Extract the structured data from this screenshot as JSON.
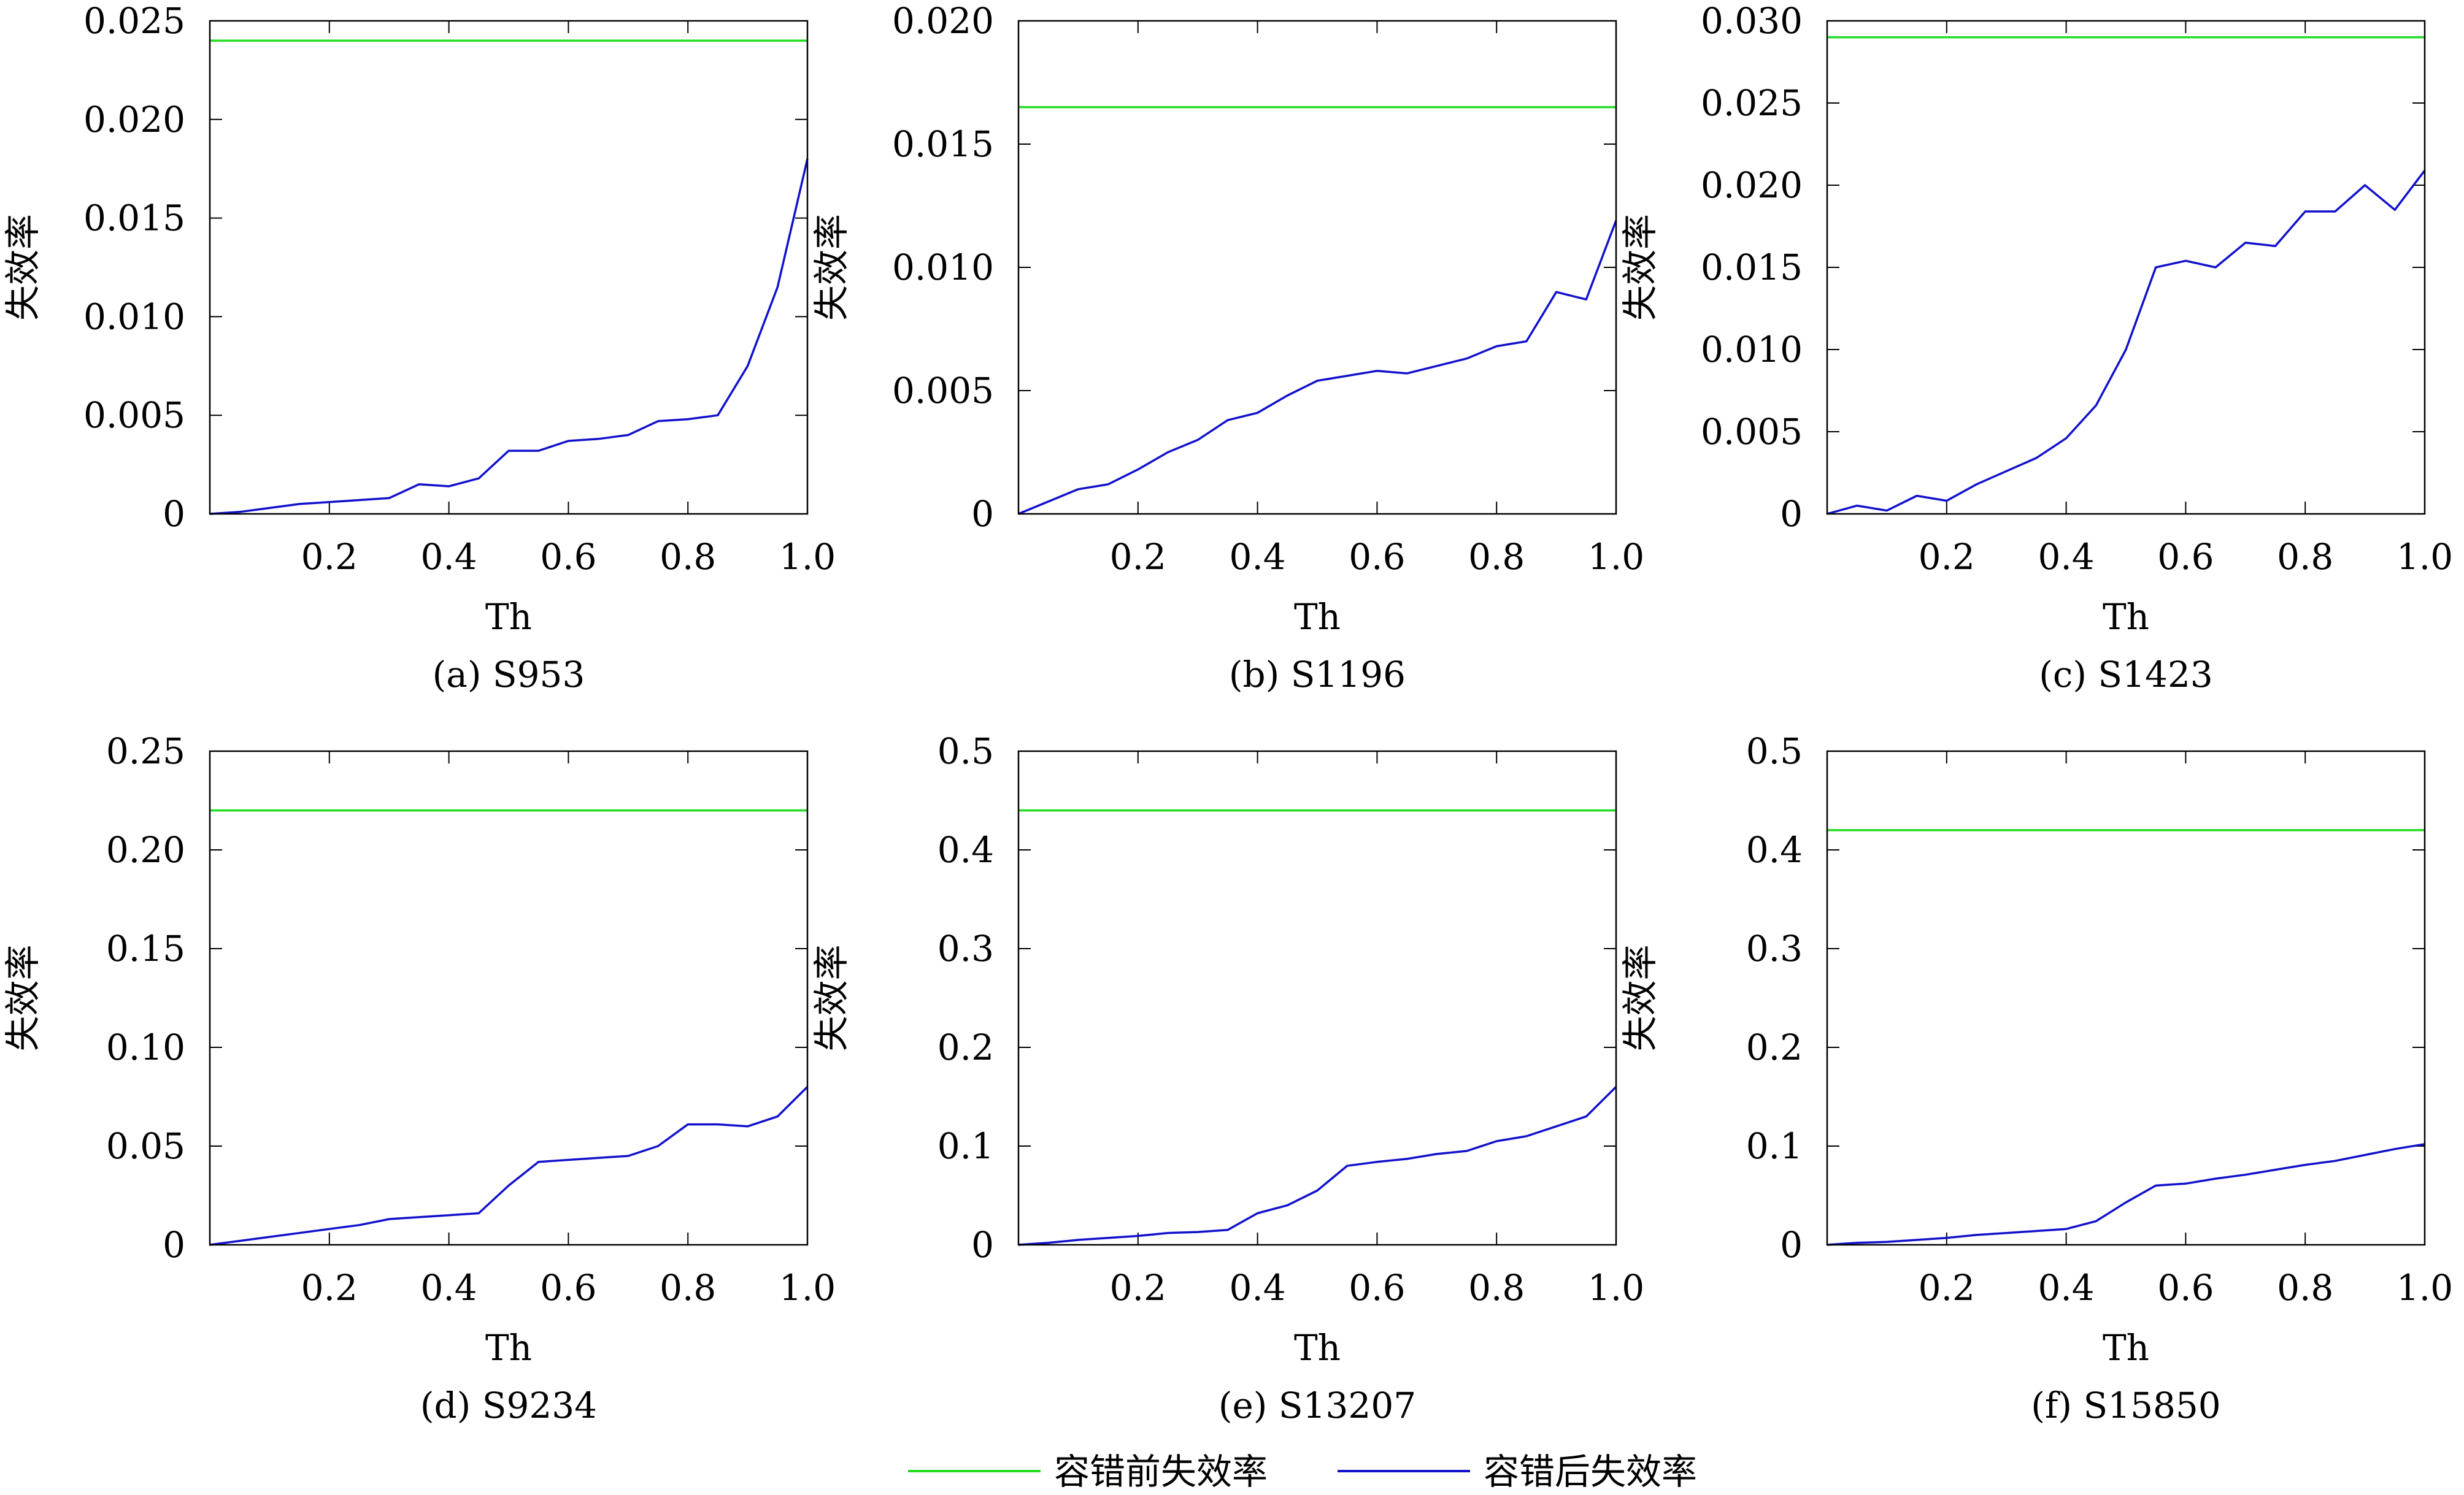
{
  "legend": {
    "items": [
      {
        "label": "容错前失效率",
        "color": "#22dd22"
      },
      {
        "label": "容错后失效率",
        "color": "#1111cc"
      }
    ]
  },
  "chart_data": [
    {
      "type": "line",
      "caption": "(a) S953",
      "xlabel": "Th",
      "ylabel": "失效率",
      "xlim": [
        0,
        1.0
      ],
      "ylim": [
        0,
        0.025
      ],
      "xticks": [
        "0.2",
        "0.4",
        "0.6",
        "0.8",
        "1.0"
      ],
      "yticks": [
        "0",
        "0.005",
        "0.010",
        "0.015",
        "0.020",
        "0.025"
      ],
      "x": [
        0,
        0.05,
        0.1,
        0.15,
        0.2,
        0.25,
        0.3,
        0.35,
        0.4,
        0.45,
        0.5,
        0.55,
        0.6,
        0.65,
        0.7,
        0.75,
        0.8,
        0.85,
        0.9,
        0.95,
        1.0
      ],
      "series": [
        {
          "name": "容错前失效率",
          "values": [
            0.024,
            0.024,
            0.024,
            0.024,
            0.024,
            0.024,
            0.024,
            0.024,
            0.024,
            0.024,
            0.024,
            0.024,
            0.024,
            0.024,
            0.024,
            0.024,
            0.024,
            0.024,
            0.024,
            0.024,
            0.024
          ]
        },
        {
          "name": "容错后失效率",
          "values": [
            0,
            0.0001,
            0.0003,
            0.0005,
            0.0006,
            0.0007,
            0.0008,
            0.0015,
            0.0014,
            0.0018,
            0.0032,
            0.0032,
            0.0037,
            0.0038,
            0.004,
            0.0047,
            0.0048,
            0.005,
            0.0075,
            0.0115,
            0.018
          ]
        }
      ]
    },
    {
      "type": "line",
      "caption": "(b) S1196",
      "xlabel": "Th",
      "ylabel": "失效率",
      "xlim": [
        0,
        1.0
      ],
      "ylim": [
        0,
        0.02
      ],
      "xticks": [
        "0.2",
        "0.4",
        "0.6",
        "0.8",
        "1.0"
      ],
      "yticks": [
        "0",
        "0.005",
        "0.010",
        "0.015",
        "0.020"
      ],
      "x": [
        0,
        0.05,
        0.1,
        0.15,
        0.2,
        0.25,
        0.3,
        0.35,
        0.4,
        0.45,
        0.5,
        0.55,
        0.6,
        0.65,
        0.7,
        0.75,
        0.8,
        0.85,
        0.9,
        0.95,
        1.0
      ],
      "series": [
        {
          "name": "容错前失效率",
          "values": [
            0.0165,
            0.0165,
            0.0165,
            0.0165,
            0.0165,
            0.0165,
            0.0165,
            0.0165,
            0.0165,
            0.0165,
            0.0165,
            0.0165,
            0.0165,
            0.0165,
            0.0165,
            0.0165,
            0.0165,
            0.0165,
            0.0165,
            0.0165,
            0.0165
          ]
        },
        {
          "name": "容错后失效率",
          "values": [
            0,
            0.0005,
            0.001,
            0.0012,
            0.0018,
            0.0025,
            0.003,
            0.0038,
            0.0041,
            0.0048,
            0.0054,
            0.0056,
            0.0058,
            0.0057,
            0.006,
            0.0063,
            0.0068,
            0.007,
            0.009,
            0.0087,
            0.0119
          ]
        }
      ]
    },
    {
      "type": "line",
      "caption": "(c) S1423",
      "xlabel": "Th",
      "ylabel": "失效率",
      "xlim": [
        0,
        1.0
      ],
      "ylim": [
        0,
        0.03
      ],
      "xticks": [
        "0.2",
        "0.4",
        "0.6",
        "0.8",
        "1.0"
      ],
      "yticks": [
        "0",
        "0.005",
        "0.010",
        "0.015",
        "0.020",
        "0.025",
        "0.030"
      ],
      "x": [
        0,
        0.05,
        0.1,
        0.15,
        0.2,
        0.25,
        0.3,
        0.35,
        0.4,
        0.45,
        0.5,
        0.55,
        0.6,
        0.65,
        0.7,
        0.75,
        0.8,
        0.85,
        0.9,
        0.95,
        1.0
      ],
      "series": [
        {
          "name": "容错前失效率",
          "values": [
            0.029,
            0.029,
            0.029,
            0.029,
            0.029,
            0.029,
            0.029,
            0.029,
            0.029,
            0.029,
            0.029,
            0.029,
            0.029,
            0.029,
            0.029,
            0.029,
            0.029,
            0.029,
            0.029,
            0.029,
            0.029
          ]
        },
        {
          "name": "容错后失效率",
          "values": [
            0,
            0.0005,
            0.0002,
            0.0011,
            0.0008,
            0.0018,
            0.0026,
            0.0034,
            0.0046,
            0.0066,
            0.01,
            0.015,
            0.0154,
            0.015,
            0.0165,
            0.0163,
            0.0184,
            0.0184,
            0.02,
            0.0185,
            0.0209
          ]
        }
      ]
    },
    {
      "type": "line",
      "caption": "(d) S9234",
      "xlabel": "Th",
      "ylabel": "失效率",
      "xlim": [
        0,
        1.0
      ],
      "ylim": [
        0,
        0.25
      ],
      "xticks": [
        "0.2",
        "0.4",
        "0.6",
        "0.8",
        "1.0"
      ],
      "yticks": [
        "0",
        "0.05",
        "0.10",
        "0.15",
        "0.20",
        "0.25"
      ],
      "x": [
        0,
        0.05,
        0.1,
        0.15,
        0.2,
        0.25,
        0.3,
        0.35,
        0.4,
        0.45,
        0.5,
        0.55,
        0.6,
        0.65,
        0.7,
        0.75,
        0.8,
        0.85,
        0.9,
        0.95,
        1.0
      ],
      "series": [
        {
          "name": "容错前失效率",
          "values": [
            0.22,
            0.22,
            0.22,
            0.22,
            0.22,
            0.22,
            0.22,
            0.22,
            0.22,
            0.22,
            0.22,
            0.22,
            0.22,
            0.22,
            0.22,
            0.22,
            0.22,
            0.22,
            0.22,
            0.22,
            0.22
          ]
        },
        {
          "name": "容错后失效率",
          "values": [
            0,
            0.002,
            0.004,
            0.006,
            0.008,
            0.01,
            0.013,
            0.014,
            0.015,
            0.016,
            0.03,
            0.042,
            0.043,
            0.044,
            0.045,
            0.05,
            0.061,
            0.061,
            0.06,
            0.065,
            0.08
          ]
        }
      ]
    },
    {
      "type": "line",
      "caption": "(e) S13207",
      "xlabel": "Th",
      "ylabel": "失效率",
      "xlim": [
        0,
        1.0
      ],
      "ylim": [
        0,
        0.5
      ],
      "xticks": [
        "0.2",
        "0.4",
        "0.6",
        "0.8",
        "1.0"
      ],
      "yticks": [
        "0",
        "0.1",
        "0.2",
        "0.3",
        "0.4",
        "0.5"
      ],
      "x": [
        0,
        0.05,
        0.1,
        0.15,
        0.2,
        0.25,
        0.3,
        0.35,
        0.4,
        0.45,
        0.5,
        0.55,
        0.6,
        0.65,
        0.7,
        0.75,
        0.8,
        0.85,
        0.9,
        0.95,
        1.0
      ],
      "series": [
        {
          "name": "容错前失效率",
          "values": [
            0.44,
            0.44,
            0.44,
            0.44,
            0.44,
            0.44,
            0.44,
            0.44,
            0.44,
            0.44,
            0.44,
            0.44,
            0.44,
            0.44,
            0.44,
            0.44,
            0.44,
            0.44,
            0.44,
            0.44,
            0.44
          ]
        },
        {
          "name": "容错后失效率",
          "values": [
            0,
            0.002,
            0.005,
            0.007,
            0.009,
            0.012,
            0.013,
            0.015,
            0.032,
            0.04,
            0.055,
            0.08,
            0.084,
            0.087,
            0.092,
            0.095,
            0.105,
            0.11,
            0.12,
            0.13,
            0.16
          ]
        }
      ]
    },
    {
      "type": "line",
      "caption": "(f) S15850",
      "xlabel": "Th",
      "ylabel": "失效率",
      "xlim": [
        0,
        1.0
      ],
      "ylim": [
        0,
        0.5
      ],
      "xticks": [
        "0.2",
        "0.4",
        "0.6",
        "0.8",
        "1.0"
      ],
      "yticks": [
        "0",
        "0.1",
        "0.2",
        "0.3",
        "0.4",
        "0.5"
      ],
      "x": [
        0,
        0.05,
        0.1,
        0.15,
        0.2,
        0.25,
        0.3,
        0.35,
        0.4,
        0.45,
        0.5,
        0.55,
        0.6,
        0.65,
        0.7,
        0.75,
        0.8,
        0.85,
        0.9,
        0.95,
        1.0
      ],
      "series": [
        {
          "name": "容错前失效率",
          "values": [
            0.42,
            0.42,
            0.42,
            0.42,
            0.42,
            0.42,
            0.42,
            0.42,
            0.42,
            0.42,
            0.42,
            0.42,
            0.42,
            0.42,
            0.42,
            0.42,
            0.42,
            0.42,
            0.42,
            0.42,
            0.42
          ]
        },
        {
          "name": "容错后失效率",
          "values": [
            0,
            0.002,
            0.003,
            0.005,
            0.007,
            0.01,
            0.012,
            0.014,
            0.016,
            0.024,
            0.043,
            0.06,
            0.062,
            0.067,
            0.071,
            0.076,
            0.081,
            0.085,
            0.091,
            0.097,
            0.102
          ]
        }
      ]
    }
  ]
}
